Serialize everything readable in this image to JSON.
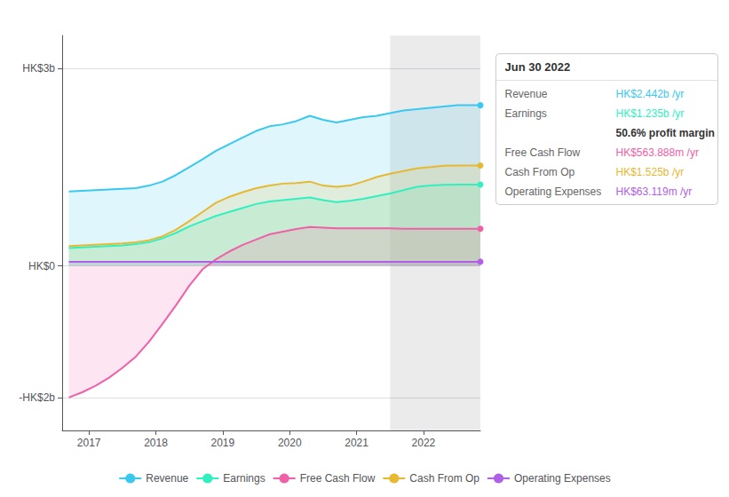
{
  "chart_data": {
    "type": "area",
    "title": "Jun 30 2022",
    "x": [
      2016.7,
      2016.9,
      2017.1,
      2017.3,
      2017.5,
      2017.7,
      2017.9,
      2018.1,
      2018.3,
      2018.5,
      2018.7,
      2018.9,
      2019.1,
      2019.3,
      2019.5,
      2019.7,
      2019.9,
      2020.1,
      2020.3,
      2020.5,
      2020.7,
      2020.9,
      2021.1,
      2021.3,
      2021.5,
      2021.7,
      2021.9,
      2022.1,
      2022.3,
      2022.5,
      2022.7,
      2022.85
    ],
    "series": [
      {
        "name": "Revenue",
        "color": "#38c8f0",
        "values": [
          1130000000.0,
          1140000000.0,
          1150000000.0,
          1160000000.0,
          1170000000.0,
          1180000000.0,
          1220000000.0,
          1280000000.0,
          1380000000.0,
          1500000000.0,
          1620000000.0,
          1750000000.0,
          1850000000.0,
          1950000000.0,
          2050000000.0,
          2120000000.0,
          2150000000.0,
          2200000000.0,
          2280000000.0,
          2220000000.0,
          2180000000.0,
          2220000000.0,
          2260000000.0,
          2280000000.0,
          2320000000.0,
          2360000000.0,
          2380000000.0,
          2400000000.0,
          2420000000.0,
          2440000000.0,
          2440000000.0,
          2440000000.0
        ]
      },
      {
        "name": "Earnings",
        "color": "#30f0c0",
        "values": [
          270000000.0,
          280000000.0,
          290000000.0,
          300000000.0,
          310000000.0,
          330000000.0,
          360000000.0,
          420000000.0,
          500000000.0,
          600000000.0,
          680000000.0,
          760000000.0,
          820000000.0,
          880000000.0,
          940000000.0,
          980000000.0,
          1000000000.0,
          1020000000.0,
          1040000000.0,
          1000000000.0,
          970000000.0,
          990000000.0,
          1020000000.0,
          1060000000.0,
          1100000000.0,
          1150000000.0,
          1200000000.0,
          1220000000.0,
          1230000000.0,
          1235000000.0,
          1235000000.0,
          1235000000.0
        ]
      },
      {
        "name": "Free Cash Flow",
        "color": "#f060a8",
        "values": [
          -2000000000.0,
          -1920000000.0,
          -1820000000.0,
          -1700000000.0,
          -1550000000.0,
          -1380000000.0,
          -1150000000.0,
          -880000000.0,
          -600000000.0,
          -300000000.0,
          -50000000.0,
          100000000.0,
          220000000.0,
          320000000.0,
          400000000.0,
          480000000.0,
          520000000.0,
          560000000.0,
          590000000.0,
          580000000.0,
          570000000.0,
          570000000.0,
          570000000.0,
          570000000.0,
          570000000.0,
          565000000.0,
          565000000.0,
          564000000.0,
          564000000.0,
          564000000.0,
          564000000.0,
          564000000.0
        ]
      },
      {
        "name": "Cash From Op",
        "color": "#e8b830",
        "values": [
          300000000.0,
          310000000.0,
          320000000.0,
          330000000.0,
          340000000.0,
          360000000.0,
          390000000.0,
          450000000.0,
          550000000.0,
          680000000.0,
          820000000.0,
          960000000.0,
          1050000000.0,
          1120000000.0,
          1180000000.0,
          1220000000.0,
          1250000000.0,
          1260000000.0,
          1280000000.0,
          1220000000.0,
          1200000000.0,
          1220000000.0,
          1280000000.0,
          1350000000.0,
          1400000000.0,
          1440000000.0,
          1480000000.0,
          1500000000.0,
          1520000000.0,
          1525000000.0,
          1525000000.0,
          1525000000.0
        ]
      },
      {
        "name": "Operating Expenses",
        "color": "#b060e8",
        "values": [
          63000000.0,
          63000000.0,
          63000000.0,
          63000000.0,
          63000000.0,
          63000000.0,
          63000000.0,
          63000000.0,
          63000000.0,
          63000000.0,
          63000000.0,
          63000000.0,
          63000000.0,
          63000000.0,
          63000000.0,
          63000000.0,
          63000000.0,
          63000000.0,
          63000000.0,
          63000000.0,
          63000000.0,
          63000000.0,
          63000000.0,
          63000000.0,
          63000000.0,
          63000000.0,
          63000000.0,
          63000000.0,
          63000000.0,
          63000000.0,
          63000000.0,
          63000000.0
        ]
      }
    ],
    "xlim": [
      2016.6,
      2022.85
    ],
    "xticks": [
      2017,
      2018,
      2019,
      2020,
      2021,
      2022
    ],
    "ylim": [
      -2500000000.0,
      3500000000.0
    ],
    "yticks": [
      {
        "value": -2000000000,
        "label": "-HK$2b"
      },
      {
        "value": 0,
        "label": "HK$0"
      },
      {
        "value": 3000000000,
        "label": "HK$3b"
      }
    ],
    "shaded_region": [
      2021.5,
      2022.85
    ],
    "annotations": [
      {
        "label": "Revenue",
        "text": "HK$2.442b /yr"
      },
      {
        "label": "Earnings",
        "text": "HK$1.235b /yr"
      },
      {
        "text": "50.6% profit margin"
      },
      {
        "label": "Free Cash Flow",
        "text": "HK$563.888m /yr"
      },
      {
        "label": "Cash From Op",
        "text": "HK$1.525b /yr"
      },
      {
        "label": "Operating Expenses",
        "text": "HK$63.119m /yr"
      }
    ],
    "grid": true,
    "legend": "bottom"
  }
}
